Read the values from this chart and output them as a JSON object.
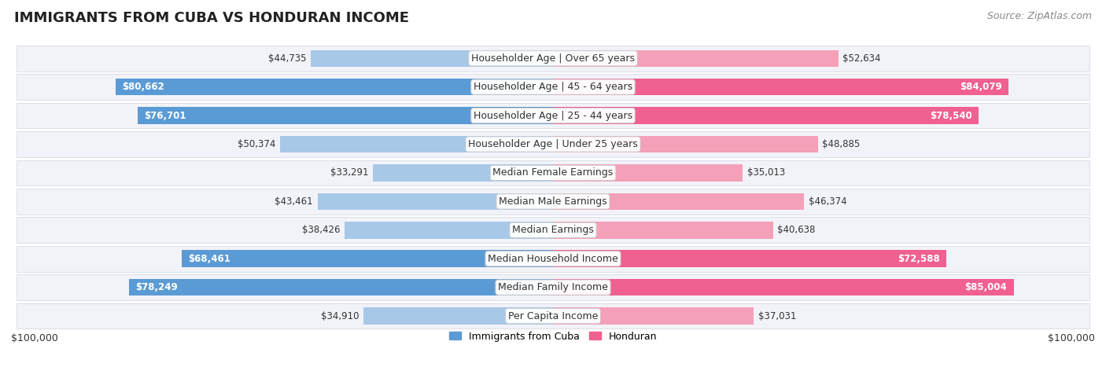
{
  "title": "IMMIGRANTS FROM CUBA VS HONDURAN INCOME",
  "source": "Source: ZipAtlas.com",
  "categories": [
    "Per Capita Income",
    "Median Family Income",
    "Median Household Income",
    "Median Earnings",
    "Median Male Earnings",
    "Median Female Earnings",
    "Householder Age | Under 25 years",
    "Householder Age | 25 - 44 years",
    "Householder Age | 45 - 64 years",
    "Householder Age | Over 65 years"
  ],
  "cuba_values": [
    34910,
    78249,
    68461,
    38426,
    43461,
    33291,
    50374,
    76701,
    80662,
    44735
  ],
  "honduran_values": [
    37031,
    85004,
    72588,
    40638,
    46374,
    35013,
    48885,
    78540,
    84079,
    52634
  ],
  "cuba_color_light": "#a8c8e8",
  "cuba_color_dark": "#5b9bd5",
  "honduran_color_light": "#f4a0b8",
  "honduran_color_dark": "#f06090",
  "background_color": "#ffffff",
  "max_value": 100000,
  "xlabel_left": "$100,000",
  "xlabel_right": "$100,000",
  "legend_cuba": "Immigrants from Cuba",
  "legend_honduran": "Honduran",
  "title_fontsize": 13,
  "source_fontsize": 9,
  "label_fontsize": 9,
  "value_fontsize": 8.5,
  "cuba_threshold": 55000,
  "hon_threshold": 55000
}
